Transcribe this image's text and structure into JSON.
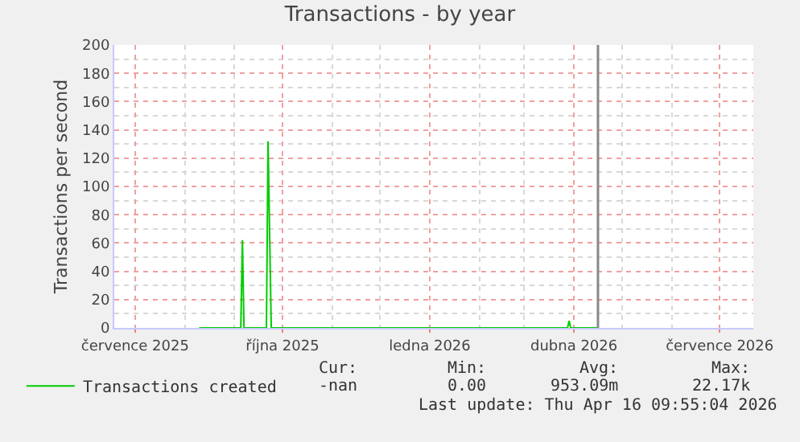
{
  "chart_data": {
    "type": "line",
    "title": "Transactions - by year",
    "ylabel": "Transactions per second",
    "x": [
      "2025-08-10",
      "2025-09-05",
      "2025-09-06",
      "2025-09-07",
      "2025-09-21",
      "2025-09-22",
      "2025-09-24",
      "2026-03-28",
      "2026-03-29",
      "2026-03-30",
      "2026-04-16"
    ],
    "series": [
      {
        "name": "Transactions created",
        "color": "#00cc00",
        "values": [
          0,
          0,
          62,
          0,
          0,
          132,
          0,
          0,
          5,
          0,
          0
        ]
      }
    ],
    "xlim": [
      "2025-06-18",
      "2026-07-22"
    ],
    "xticks": [
      {
        "value": "2025-07-01",
        "label": "července 2025"
      },
      {
        "value": "2025-10-01",
        "label": "října 2025"
      },
      {
        "value": "2026-01-01",
        "label": "ledna 2026"
      },
      {
        "value": "2026-04-01",
        "label": "dubna 2026"
      },
      {
        "value": "2026-07-01",
        "label": "července 2026"
      }
    ],
    "ylim": [
      0,
      200
    ],
    "yticks": [
      0,
      20,
      40,
      60,
      80,
      100,
      120,
      140,
      160,
      180,
      200
    ],
    "ref_lines": [
      {
        "axis": "x",
        "value": "2026-04-16",
        "label": null,
        "color": "#888888"
      }
    ],
    "grid": true,
    "legend": "bottom",
    "marker": "none",
    "line_style": "solid",
    "annotations": [
      "Cur:",
      "Min:",
      "Avg:",
      "Max:",
      "-nan",
      "0.00",
      "953.09m",
      "22.17k",
      "Last update: Thu Apr 16 09:55:04 2026"
    ]
  }
}
